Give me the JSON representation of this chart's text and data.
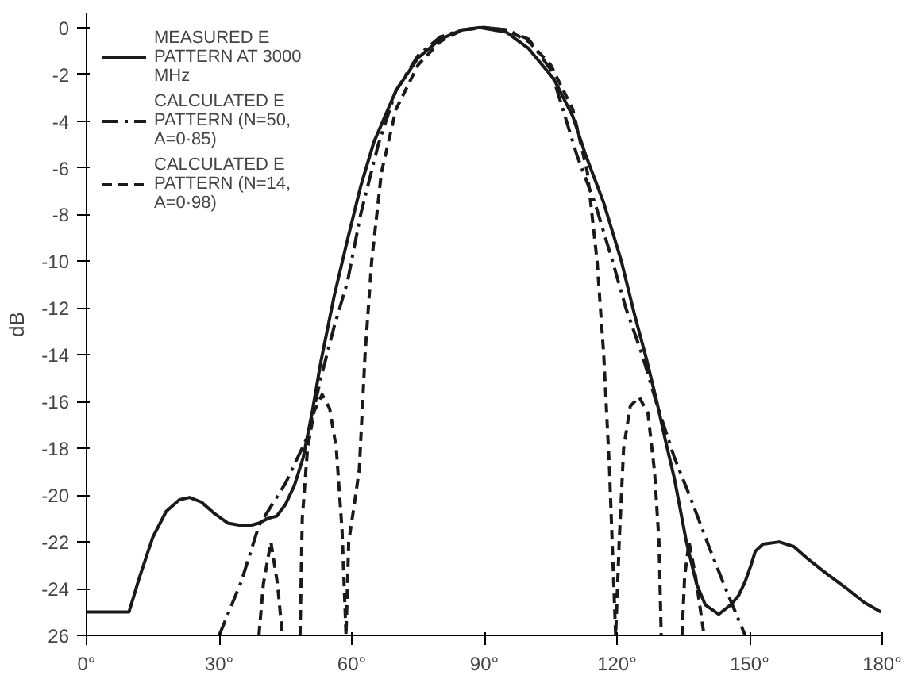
{
  "chart_data": {
    "type": "line",
    "ylabel": "dB",
    "xlim": [
      0,
      180
    ],
    "xticks": [
      {
        "value": 0,
        "label": "0°"
      },
      {
        "value": 30,
        "label": "30°"
      },
      {
        "value": 60,
        "label": "60°"
      },
      {
        "value": 90,
        "label": "90°"
      },
      {
        "value": 120,
        "label": "120°"
      },
      {
        "value": 150,
        "label": "150°"
      },
      {
        "value": 180,
        "label": "180°"
      }
    ],
    "ylim": [
      -26,
      0.6
    ],
    "yticks": [
      0,
      -2,
      -4,
      -6,
      -8,
      -10,
      -12,
      -14,
      -16,
      -18,
      -20,
      -22,
      -24,
      {
        "value": -26,
        "label": "26"
      }
    ],
    "grid": false,
    "legend": "top left",
    "marker": "none",
    "series": [
      {
        "name": "MEASURED E PATTERN AT 3000 MHz",
        "color": "#1a1a1a",
        "line_style": "solid",
        "x": [
          0,
          5,
          9.6,
          12,
          15,
          18,
          21,
          23.3,
          26,
          29,
          32,
          35,
          37,
          39,
          41,
          43,
          45,
          47,
          49,
          51,
          53,
          56,
          59,
          62,
          65,
          70,
          75,
          80,
          85,
          89,
          95,
          100,
          105.7,
          110,
          113,
          117,
          121,
          124,
          126.7,
          129,
          131,
          133,
          135.7,
          138,
          140,
          143,
          145.7,
          147.5,
          149,
          150.3,
          151.3,
          153,
          156.7,
          160,
          163,
          167,
          172,
          176,
          179.7
        ],
        "values": [
          -25,
          -25,
          -25,
          -23.5,
          -21.8,
          -20.7,
          -20.2,
          -20.1,
          -20.3,
          -20.8,
          -21.2,
          -21.3,
          -21.3,
          -21.2,
          -21.0,
          -20.9,
          -20.4,
          -19.6,
          -18.4,
          -16.5,
          -14.3,
          -11.5,
          -9.1,
          -6.8,
          -4.9,
          -2.7,
          -1.3,
          -0.5,
          -0.1,
          0,
          -0.2,
          -0.9,
          -2.2,
          -3.8,
          -5.5,
          -7.5,
          -10,
          -12.3,
          -14.2,
          -16,
          -17.7,
          -19.3,
          -22,
          -23.8,
          -24.7,
          -25.1,
          -24.7,
          -24.3,
          -23.7,
          -23,
          -22.4,
          -22.1,
          -22,
          -22.2,
          -22.7,
          -23.3,
          -24,
          -24.6,
          -25
        ]
      },
      {
        "name": "CALCULATED E PATTERN (N=50, A=0·85)",
        "color": "#1a1a1a",
        "line_style": "dashdot",
        "x": [
          30,
          35,
          39,
          45,
          50,
          53,
          56,
          59,
          62,
          66,
          70,
          75,
          80,
          85,
          90,
          95,
          100,
          105,
          111,
          115,
          119,
          122,
          125.7,
          129,
          133,
          137,
          141,
          145,
          149
        ],
        "values": [
          -26,
          -23.7,
          -21.3,
          -19.5,
          -17.5,
          -15,
          -12.8,
          -10.9,
          -8,
          -5,
          -2.7,
          -1.2,
          -0.4,
          -0.1,
          0,
          -0.1,
          -0.5,
          -1.8,
          -5.5,
          -7.5,
          -10,
          -12,
          -14,
          -16.1,
          -18.4,
          -20.3,
          -22.3,
          -24.2,
          -26
        ]
      },
      {
        "name": "CALCULATED E PATTERN (N=14, A=0·98)",
        "color": "#1a1a1a",
        "line_style": "dashed",
        "x": [
          39,
          40,
          41.7,
          43.2,
          44.3,
          46,
          48.3,
          48.8,
          50,
          51.5,
          53.3,
          55,
          56.5,
          57.8,
          58.7,
          59.3,
          60.5,
          61.7,
          63,
          64.5,
          66.7,
          70,
          75,
          80,
          85,
          90,
          95,
          100,
          105,
          110,
          113.3,
          115.5,
          117,
          118.3,
          119.7,
          120.5,
          121.5,
          123,
          125,
          127,
          128.5,
          129.5,
          130,
          132,
          134.7,
          135.3,
          136.3,
          137.8,
          139.7
        ],
        "values": [
          -26,
          -23.8,
          -22,
          -23.8,
          -26,
          null,
          -26,
          -21,
          -18,
          -16.4,
          -15.7,
          -16.3,
          -18,
          -21.5,
          -26,
          -22,
          -20.5,
          -18.9,
          -14,
          -10,
          -6.2,
          -3.5,
          -1.6,
          -0.6,
          -0.1,
          0,
          -0.1,
          -0.6,
          -1.6,
          -3.5,
          -6.2,
          -10,
          -14,
          -18.9,
          -26,
          -22,
          -18,
          -16.2,
          -15.8,
          -16.5,
          -19,
          -22,
          -26,
          null,
          -26,
          -23.5,
          -22,
          -23.5,
          -26
        ]
      }
    ]
  }
}
